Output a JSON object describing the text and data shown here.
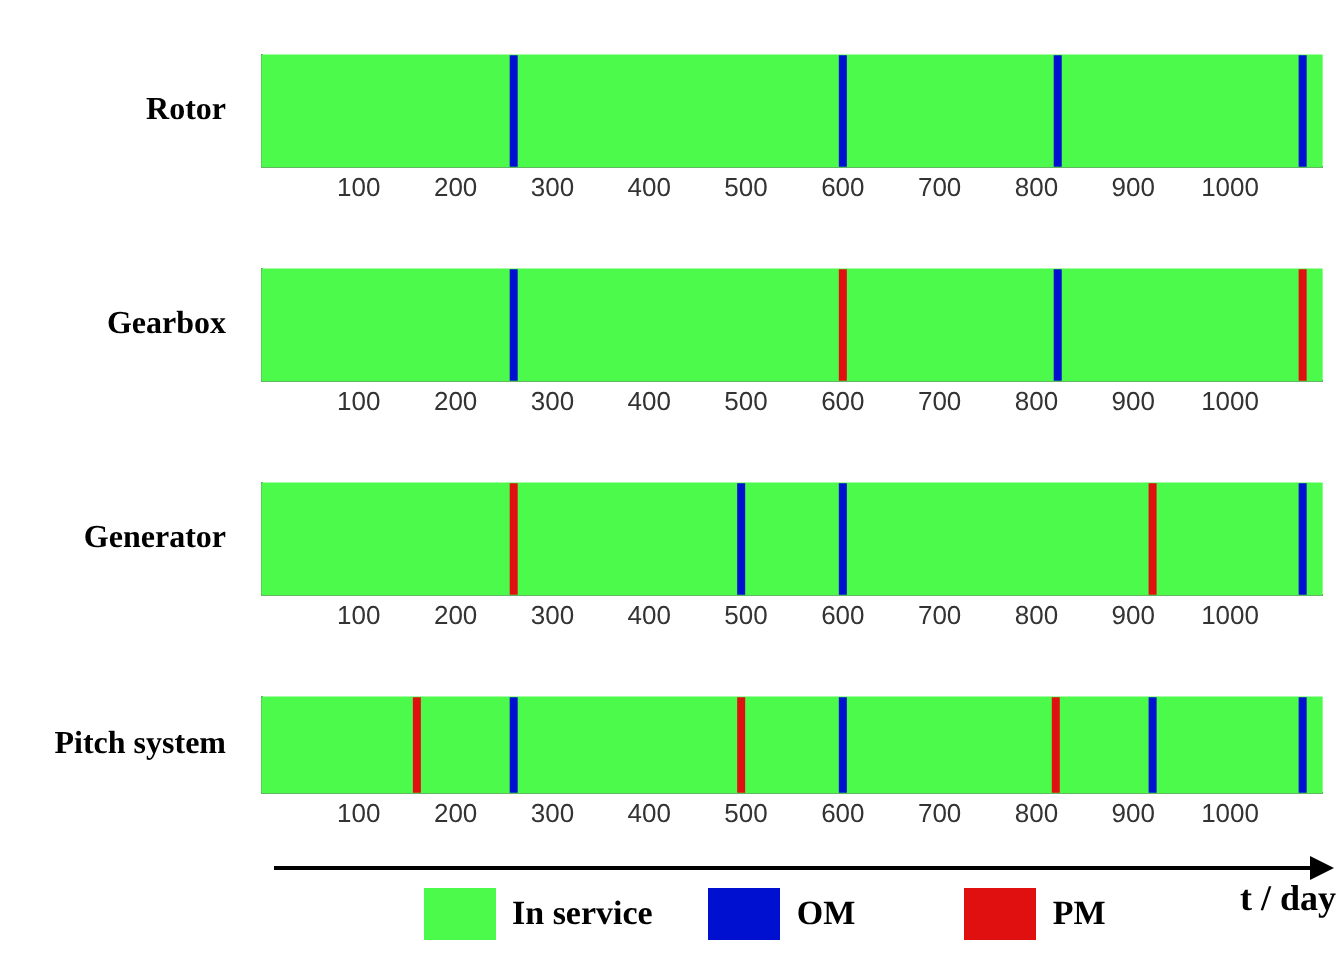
{
  "chart_data": [
    {
      "type": "bar",
      "orientation": "horizontal",
      "categories": [
        "Rotor"
      ],
      "series": [
        {
          "color": "#4cfa4c",
          "values": [
            1095
          ]
        }
      ],
      "xlim": [
        0,
        1095
      ],
      "xticks": [
        100,
        200,
        300,
        400,
        500,
        600,
        700,
        800,
        900,
        1000
      ],
      "ref_lines": [
        {
          "axis": "x",
          "value": 260,
          "color": "#0010d0"
        },
        {
          "axis": "x",
          "value": 600,
          "color": "#0010d0"
        },
        {
          "axis": "x",
          "value": 822,
          "color": "#0010d0"
        },
        {
          "axis": "x",
          "value": 1075,
          "color": "#0010d0"
        }
      ]
    },
    {
      "type": "bar",
      "orientation": "horizontal",
      "categories": [
        "Gearbox"
      ],
      "series": [
        {
          "color": "#4cfa4c",
          "values": [
            1095
          ]
        }
      ],
      "xlim": [
        0,
        1095
      ],
      "xticks": [
        100,
        200,
        300,
        400,
        500,
        600,
        700,
        800,
        900,
        1000
      ],
      "ref_lines": [
        {
          "axis": "x",
          "value": 260,
          "color": "#0010d0"
        },
        {
          "axis": "x",
          "value": 600,
          "color": "#e01010"
        },
        {
          "axis": "x",
          "value": 822,
          "color": "#0010d0"
        },
        {
          "axis": "x",
          "value": 1075,
          "color": "#e01010"
        }
      ]
    },
    {
      "type": "bar",
      "orientation": "horizontal",
      "categories": [
        "Generator"
      ],
      "series": [
        {
          "color": "#4cfa4c",
          "values": [
            1095
          ]
        }
      ],
      "xlim": [
        0,
        1095
      ],
      "xticks": [
        100,
        200,
        300,
        400,
        500,
        600,
        700,
        800,
        900,
        1000
      ],
      "ref_lines": [
        {
          "axis": "x",
          "value": 260,
          "color": "#e01010"
        },
        {
          "axis": "x",
          "value": 495,
          "color": "#0010d0"
        },
        {
          "axis": "x",
          "value": 600,
          "color": "#0010d0"
        },
        {
          "axis": "x",
          "value": 920,
          "color": "#e01010"
        },
        {
          "axis": "x",
          "value": 1075,
          "color": "#0010d0"
        }
      ]
    },
    {
      "type": "bar",
      "orientation": "horizontal",
      "categories": [
        "Pitch system"
      ],
      "series": [
        {
          "name": "In service",
          "color": "#4cfa4c",
          "values": [
            1095
          ]
        },
        {
          "name": "OM",
          "color": "#0010d0",
          "values": [
            null
          ]
        },
        {
          "name": "PM",
          "color": "#e01010",
          "values": [
            null
          ]
        }
      ],
      "xlim": [
        0,
        1095
      ],
      "xticks": [
        100,
        200,
        300,
        400,
        500,
        600,
        700,
        800,
        900,
        1000
      ],
      "xlabel": "t / day",
      "legend": "bottom",
      "ref_lines": [
        {
          "axis": "x",
          "value": 160,
          "color": "#e01010"
        },
        {
          "axis": "x",
          "value": 260,
          "color": "#0010d0"
        },
        {
          "axis": "x",
          "value": 495,
          "color": "#e01010"
        },
        {
          "axis": "x",
          "value": 600,
          "color": "#0010d0"
        },
        {
          "axis": "x",
          "value": 820,
          "color": "#e01010"
        },
        {
          "axis": "x",
          "value": 920,
          "color": "#0010d0"
        },
        {
          "axis": "x",
          "value": 1075,
          "color": "#0010d0"
        }
      ]
    }
  ]
}
